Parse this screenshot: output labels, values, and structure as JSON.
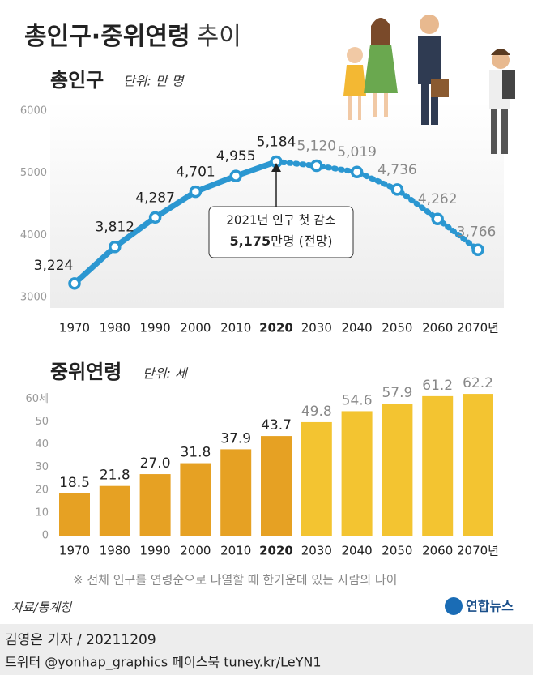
{
  "header": {
    "title": "총인구·중위연령",
    "title_suffix": "추이"
  },
  "chart_data": [
    {
      "type": "line",
      "title": "총인구",
      "unit": "단위: 만 명",
      "categories": [
        "1970",
        "1980",
        "1990",
        "2000",
        "2010",
        "2020",
        "2030",
        "2040",
        "2050",
        "2060",
        "2070년"
      ],
      "values": [
        3224,
        3812,
        4287,
        4701,
        4955,
        5184,
        5120,
        5019,
        4736,
        4262,
        3766
      ],
      "value_labels": [
        "3,224",
        "3,812",
        "4,287",
        "4,701",
        "4,955",
        "5,184",
        "5,120",
        "5,019",
        "4,736",
        "4,262",
        "3,766"
      ],
      "color": "#2b97d1",
      "dashed_from": 5,
      "highlight_index": 5,
      "ylim": [
        3000,
        6000
      ],
      "yticks": [
        3000,
        4000,
        5000,
        6000
      ],
      "grid": false,
      "annotation": {
        "text": "2021년 인구 첫 감소",
        "value": "5,175",
        "suffix": "만명 (전망)"
      }
    },
    {
      "type": "bar",
      "title": "중위연령",
      "unit": "단위: 세",
      "categories": [
        "1970",
        "1980",
        "1990",
        "2000",
        "2010",
        "2020",
        "2030",
        "2040",
        "2050",
        "2060",
        "2070년"
      ],
      "values": [
        18.5,
        21.8,
        27.0,
        31.8,
        37.9,
        43.7,
        49.8,
        54.6,
        57.9,
        61.2,
        62.2
      ],
      "value_labels": [
        "18.5",
        "21.8",
        "27.0",
        "31.8",
        "37.9",
        "43.7",
        "49.8",
        "54.6",
        "57.9",
        "61.2",
        "62.2"
      ],
      "color": "#e6a123",
      "projected_color": "#f3c431",
      "projected_from": 6,
      "highlight_index": 5,
      "ylim": [
        0,
        64
      ],
      "yticks": [
        0,
        10,
        20,
        30,
        40,
        50,
        {
          "value": 60,
          "label": "60세"
        }
      ],
      "grid": false,
      "note": "※ 전체 인구를 연령순으로 나열할 때 한가운데 있는 사람의 나이"
    }
  ],
  "source": "자료/통계청",
  "logo": "연합뉴스",
  "byline": "김영은 기자 / 20211209",
  "footer": "트위터 @yonhap_graphics  페이스북 tuney.kr/LeYN1"
}
